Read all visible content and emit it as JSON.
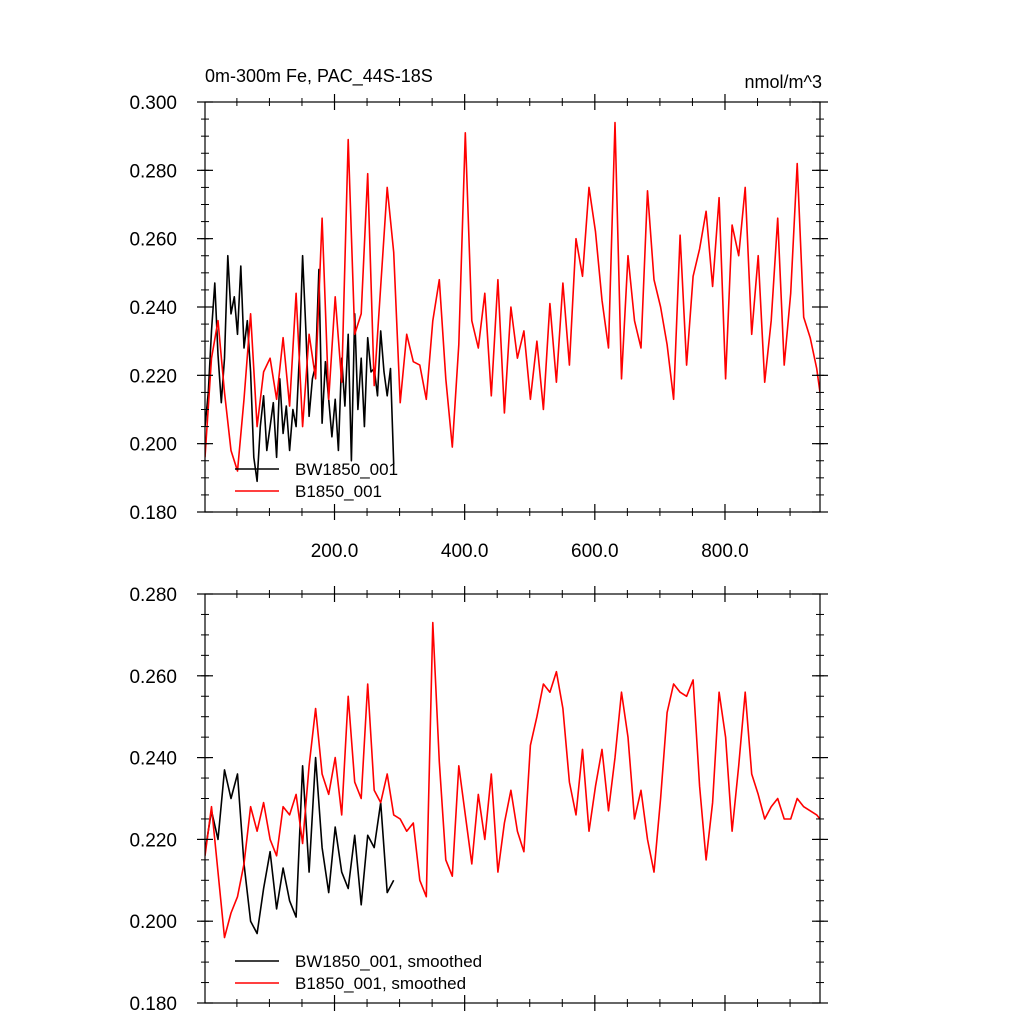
{
  "chart_data": [
    {
      "type": "line",
      "title": "0m-300m Fe, PAC_44S-18S",
      "units": "nmol/m^3",
      "xlim": [
        1,
        946
      ],
      "ylim": [
        0.18,
        0.3
      ],
      "x_ticks": [
        200,
        400,
        600,
        800
      ],
      "x_tick_labels": [
        "200.0",
        "400.0",
        "600.0",
        "800.0"
      ],
      "y_ticks": [
        0.18,
        0.2,
        0.22,
        0.24,
        0.26,
        0.28,
        0.3
      ],
      "y_tick_labels": [
        "0.180",
        "0.200",
        "0.220",
        "0.240",
        "0.260",
        "0.280",
        "0.300"
      ],
      "grid": false,
      "legend_position": "bottom-left",
      "series": [
        {
          "name": "BW1850_001",
          "color": "#000000",
          "x": [
            1,
            6,
            11,
            16,
            21,
            26,
            31,
            36,
            41,
            46,
            51,
            56,
            61,
            66,
            71,
            76,
            81,
            86,
            91,
            96,
            101,
            106,
            111,
            116,
            121,
            126,
            131,
            136,
            141,
            146,
            151,
            156,
            161,
            166,
            171,
            176,
            181,
            186,
            191,
            196,
            201,
            206,
            211,
            216,
            221,
            226,
            231,
            236,
            241,
            246,
            251,
            256,
            261,
            266,
            271,
            276,
            281,
            286,
            291
          ],
          "values": [
            0.205,
            0.215,
            0.233,
            0.247,
            0.226,
            0.212,
            0.225,
            0.255,
            0.238,
            0.243,
            0.232,
            0.252,
            0.228,
            0.236,
            0.221,
            0.196,
            0.189,
            0.205,
            0.214,
            0.198,
            0.205,
            0.212,
            0.196,
            0.219,
            0.203,
            0.211,
            0.198,
            0.21,
            0.205,
            0.226,
            0.255,
            0.233,
            0.208,
            0.219,
            0.223,
            0.251,
            0.206,
            0.224,
            0.213,
            0.202,
            0.213,
            0.198,
            0.225,
            0.211,
            0.232,
            0.195,
            0.238,
            0.21,
            0.225,
            0.205,
            0.231,
            0.221,
            0.222,
            0.214,
            0.233,
            0.221,
            0.214,
            0.222,
            0.194
          ]
        },
        {
          "name": "B1850_001",
          "color": "#ff0000",
          "x": [
            1,
            11,
            21,
            31,
            41,
            51,
            61,
            71,
            81,
            91,
            101,
            111,
            121,
            131,
            141,
            151,
            161,
            171,
            181,
            191,
            201,
            211,
            221,
            231,
            241,
            251,
            261,
            271,
            281,
            291,
            301,
            311,
            321,
            331,
            341,
            351,
            361,
            371,
            381,
            391,
            401,
            411,
            421,
            431,
            441,
            451,
            461,
            471,
            481,
            491,
            501,
            511,
            521,
            531,
            541,
            551,
            561,
            571,
            581,
            591,
            601,
            611,
            621,
            631,
            641,
            651,
            661,
            671,
            681,
            691,
            701,
            711,
            721,
            731,
            741,
            751,
            761,
            771,
            781,
            791,
            801,
            811,
            821,
            831,
            841,
            851,
            861,
            871,
            881,
            891,
            901,
            911,
            921,
            931,
            941,
            946
          ],
          "values": [
            0.196,
            0.225,
            0.236,
            0.215,
            0.198,
            0.192,
            0.213,
            0.238,
            0.205,
            0.221,
            0.225,
            0.213,
            0.231,
            0.211,
            0.244,
            0.205,
            0.232,
            0.219,
            0.266,
            0.213,
            0.243,
            0.218,
            0.289,
            0.232,
            0.238,
            0.279,
            0.217,
            0.246,
            0.275,
            0.256,
            0.212,
            0.232,
            0.224,
            0.223,
            0.213,
            0.236,
            0.248,
            0.219,
            0.199,
            0.229,
            0.291,
            0.236,
            0.228,
            0.244,
            0.214,
            0.248,
            0.209,
            0.24,
            0.225,
            0.233,
            0.213,
            0.23,
            0.21,
            0.241,
            0.218,
            0.247,
            0.223,
            0.26,
            0.249,
            0.275,
            0.262,
            0.242,
            0.228,
            0.294,
            0.219,
            0.255,
            0.236,
            0.228,
            0.274,
            0.248,
            0.24,
            0.229,
            0.213,
            0.261,
            0.223,
            0.249,
            0.257,
            0.268,
            0.246,
            0.272,
            0.219,
            0.264,
            0.255,
            0.275,
            0.232,
            0.255,
            0.218,
            0.236,
            0.266,
            0.223,
            0.244,
            0.282,
            0.237,
            0.231,
            0.222,
            0.215
          ]
        }
      ]
    },
    {
      "type": "line",
      "xlim": [
        1,
        946
      ],
      "ylim": [
        0.18,
        0.28
      ],
      "x_ticks": [
        200,
        400,
        600,
        800
      ],
      "y_ticks": [
        0.18,
        0.2,
        0.22,
        0.24,
        0.26,
        0.28
      ],
      "y_tick_labels": [
        "0.180",
        "0.200",
        "0.220",
        "0.240",
        "0.260",
        "0.280"
      ],
      "grid": false,
      "legend_position": "bottom-left",
      "series": [
        {
          "name": "BW1850_001, smoothed",
          "color": "#000000",
          "x": [
            1,
            11,
            21,
            31,
            41,
            51,
            61,
            71,
            81,
            91,
            101,
            111,
            121,
            131,
            141,
            151,
            161,
            171,
            181,
            191,
            201,
            211,
            221,
            231,
            241,
            251,
            261,
            271,
            281,
            291
          ],
          "values": [
            0.217,
            0.227,
            0.22,
            0.237,
            0.23,
            0.236,
            0.214,
            0.2,
            0.197,
            0.208,
            0.217,
            0.203,
            0.213,
            0.205,
            0.201,
            0.238,
            0.212,
            0.24,
            0.218,
            0.207,
            0.223,
            0.212,
            0.208,
            0.221,
            0.204,
            0.221,
            0.218,
            0.229,
            0.207,
            0.21
          ]
        },
        {
          "name": "B1850_001, smoothed",
          "color": "#ff0000",
          "x": [
            1,
            11,
            21,
            31,
            41,
            51,
            61,
            71,
            81,
            91,
            101,
            111,
            121,
            131,
            141,
            151,
            161,
            171,
            181,
            191,
            201,
            211,
            221,
            231,
            241,
            251,
            261,
            271,
            281,
            291,
            301,
            311,
            321,
            331,
            341,
            351,
            361,
            371,
            381,
            391,
            401,
            411,
            421,
            431,
            441,
            451,
            461,
            471,
            481,
            491,
            501,
            511,
            521,
            531,
            541,
            551,
            561,
            571,
            581,
            591,
            601,
            611,
            621,
            631,
            641,
            651,
            661,
            671,
            681,
            691,
            701,
            711,
            721,
            731,
            741,
            751,
            761,
            771,
            781,
            791,
            801,
            811,
            821,
            831,
            841,
            851,
            861,
            871,
            881,
            891,
            901,
            911,
            921,
            931,
            941,
            946
          ],
          "values": [
            0.216,
            0.228,
            0.212,
            0.196,
            0.202,
            0.206,
            0.214,
            0.228,
            0.222,
            0.229,
            0.22,
            0.216,
            0.228,
            0.226,
            0.231,
            0.219,
            0.238,
            0.252,
            0.236,
            0.231,
            0.24,
            0.226,
            0.255,
            0.234,
            0.23,
            0.258,
            0.232,
            0.229,
            0.236,
            0.226,
            0.225,
            0.222,
            0.224,
            0.21,
            0.206,
            0.273,
            0.239,
            0.215,
            0.211,
            0.238,
            0.226,
            0.214,
            0.231,
            0.22,
            0.236,
            0.212,
            0.224,
            0.232,
            0.222,
            0.217,
            0.243,
            0.25,
            0.258,
            0.256,
            0.261,
            0.252,
            0.234,
            0.226,
            0.242,
            0.222,
            0.233,
            0.242,
            0.227,
            0.24,
            0.256,
            0.245,
            0.225,
            0.232,
            0.22,
            0.212,
            0.23,
            0.251,
            0.258,
            0.256,
            0.255,
            0.259,
            0.233,
            0.215,
            0.229,
            0.256,
            0.245,
            0.222,
            0.238,
            0.256,
            0.236,
            0.231,
            0.225,
            0.228,
            0.23,
            0.225,
            0.225,
            0.23,
            0.228,
            0.227,
            0.226,
            0.225
          ]
        }
      ]
    }
  ]
}
